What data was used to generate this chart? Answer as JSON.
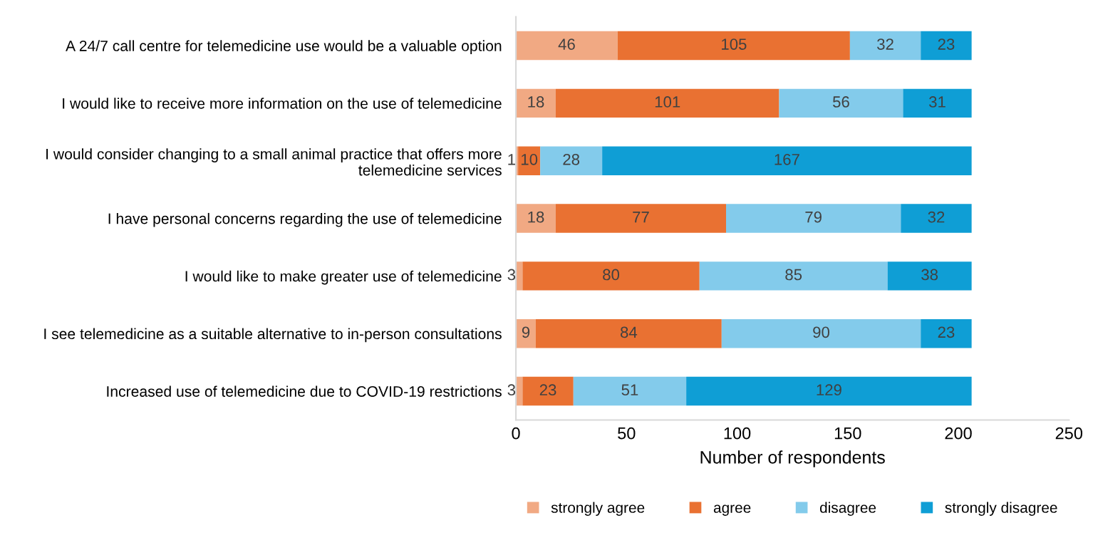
{
  "chart_data": {
    "type": "bar",
    "orientation": "horizontal",
    "stacked": true,
    "xlabel": "Number of respondents",
    "categories": [
      "A 24/7 call centre for telemedicine use would be a valuable option",
      "I would like to receive more information on the use of telemedicine",
      "I would consider changing to a small animal practice that offers more\ntelemedicine services",
      "I have personal concerns regarding the use of telemedicine",
      "I would like to make greater use of telemedicine",
      "I see telemedicine as a suitable alternative to in-person consultations",
      "Increased use of telemedicine due to COVID-19 restrictions"
    ],
    "series": [
      {
        "name": "strongly agree",
        "color": "#f1a983",
        "values": [
          46,
          18,
          1,
          18,
          3,
          9,
          3
        ]
      },
      {
        "name": "agree",
        "color": "#e97132",
        "values": [
          105,
          101,
          10,
          77,
          80,
          84,
          23
        ]
      },
      {
        "name": "disagree",
        "color": "#83cbeb",
        "values": [
          32,
          56,
          28,
          79,
          85,
          90,
          51
        ]
      },
      {
        "name": "strongly disagree",
        "color": "#0f9ed5",
        "values": [
          23,
          31,
          167,
          32,
          38,
          23,
          129
        ]
      }
    ],
    "xlim": [
      0,
      250
    ],
    "xticks": [
      0,
      50,
      100,
      150,
      200,
      250
    ],
    "data_labels": true,
    "legend": "bottom",
    "grid": false
  }
}
